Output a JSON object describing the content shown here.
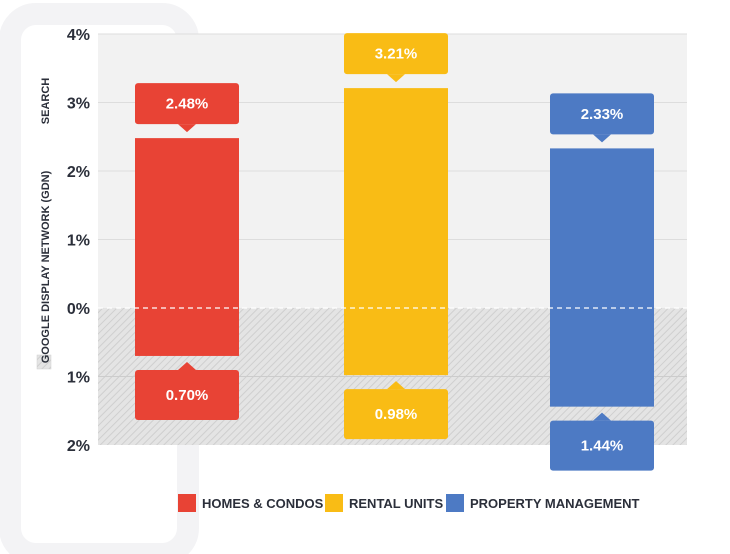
{
  "chart_data": {
    "type": "bar",
    "ylim_top": [
      0,
      4
    ],
    "ylim_bottom": [
      0,
      2
    ],
    "top_tick_labels": [
      "0%",
      "1%",
      "2%",
      "3%",
      "4%"
    ],
    "bottom_tick_labels": [
      "1%",
      "2%"
    ],
    "top_axis_label": "SEARCH",
    "bottom_axis_label": "GOOGLE DISPLAY NETWORK (GDN)",
    "series": [
      {
        "name": "HOMES & CONDOS",
        "color": "#e84335",
        "search": 2.48,
        "gdn": 0.7,
        "search_label": "2.48%",
        "gdn_label": "0.70%"
      },
      {
        "name": "RENTAL UNITS",
        "color": "#f9bc15",
        "search": 3.21,
        "gdn": 0.98,
        "search_label": "3.21%",
        "gdn_label": "0.98%"
      },
      {
        "name": "PROPERTY MANAGEMENT",
        "color": "#4d7ac4",
        "search": 2.33,
        "gdn": 1.44,
        "search_label": "2.33%",
        "gdn_label": "1.44%"
      }
    ]
  }
}
